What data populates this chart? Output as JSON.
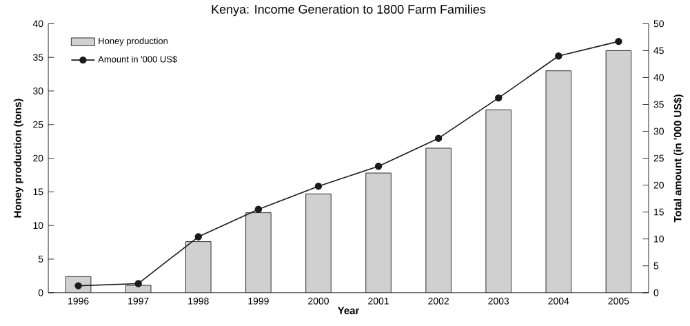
{
  "chart_data": {
    "type": "bar",
    "title": "Kenya: Income Generation to 1800 Farm Families",
    "xlabel": "Year",
    "ylabel": "Honey production (tons)",
    "y2label": "Total amount (in '000 US$)",
    "categories": [
      "1996",
      "1997",
      "1998",
      "1999",
      "2000",
      "2001",
      "2002",
      "2003",
      "2004",
      "2005"
    ],
    "series": [
      {
        "name": "Honey production",
        "color": "#d0d0d0",
        "values": [
          2.4,
          1.1,
          7.6,
          11.9,
          14.7,
          17.8,
          21.5,
          27.2,
          33.0,
          36.0
        ]
      },
      {
        "name": "Amount in '000 US$",
        "type": "line",
        "axis": "y2",
        "color": "#1a1a1a",
        "marker": "circle",
        "values": [
          1.3,
          1.7,
          10.4,
          15.5,
          19.8,
          23.5,
          28.7,
          36.2,
          44.0,
          46.7
        ]
      }
    ],
    "ylim": [
      0,
      40
    ],
    "yticks": [
      0,
      5,
      10,
      15,
      20,
      25,
      30,
      35,
      40
    ],
    "y2lim": [
      0,
      50
    ],
    "y2ticks": [
      0,
      5,
      10,
      15,
      20,
      25,
      30,
      35,
      40,
      45,
      50
    ],
    "legend": "top left",
    "grid": false
  }
}
